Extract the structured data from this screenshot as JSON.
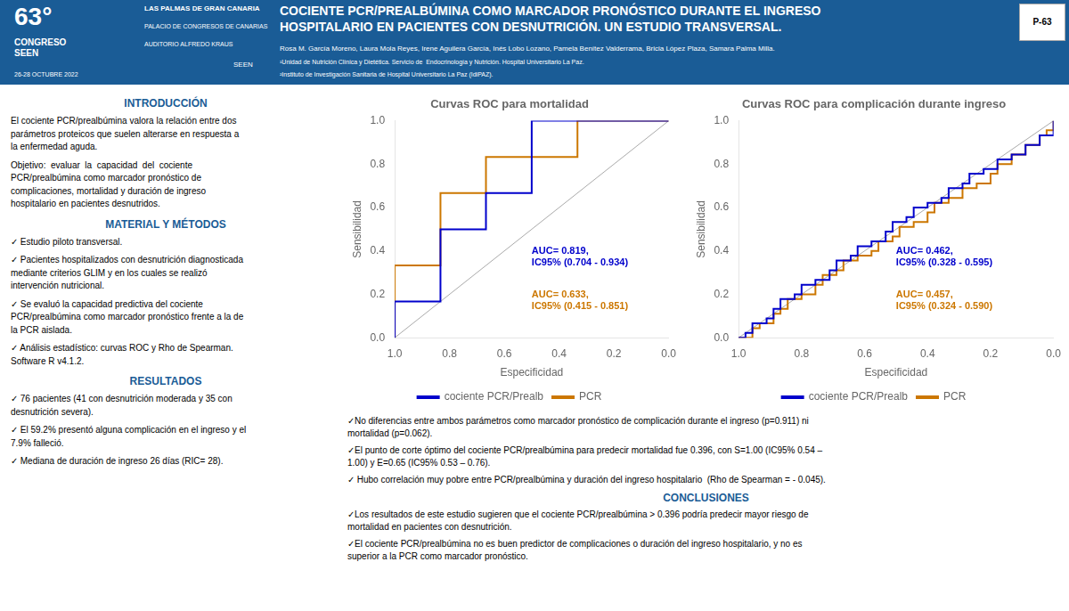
{
  "title": "COCIENTE PCR/PREALBÚMINA COMO MARCADOR PRONÓSTICO DURANTE EL INGRESO\nHOSPITALARIO EN PACIENTES CON DESNUTRICIÓN. UN ESTUDIO TRANSVERSAL.",
  "color": "#1a5c96",
  "annotations": [
    "63°",
    "CONGRESO\nSEEN",
    "26-28 OCTUBRE 2022",
    "LAS PALMAS DE GRAN CANARIA",
    "PALACIO DE CONGRESOS DE CANARIAS",
    "AUDITORIO ALFREDO KRAUS",
    "SEEN",
    "P-63",
    "Rosa M. García Moreno, Laura Mola Reyes, Irene Aguilera García, Inés Lobo Lozano, Pamela Benítez Valderrama, Bricia López Plaza, Samara Palma Milla.",
    "¹Unidad de Nutrición Clínica y Dietética. Servicio de  Endocrinología y Nutrición. Hospital Universitario La Paz.",
    "²Instituto de Investigación Sanitaria de Hospital Universitario La Paz (IdiPAZ).",
    "INTRODUCCIÓN",
    "El cociente PCR/prealbúmina valora la relación entre dos\nparámetros proteicos que suelen alterarse en respuesta a\nla enfermedad aguda.",
    "Objetivo:  evaluar  la  capacidad  del  cociente\nPCR/prealbúmina como marcador pronóstico de\ncomplicaciones, mortalidad y duración de ingreso\nhospitalario en pacientes desnutridos.",
    "MATERIAL Y MÉTODOS",
    "✓ Estudio piloto transversal.",
    "✓ Pacientes hospitalizados con desnutrición diagnosticada\nmediante criterios GLIM y en los cuales se realizó\nintervención nutricional.",
    "✓ Se evaluó la capacidad predictiva del cociente\nPCR/prealbúmina como marcador pronóstico frente a la de\nla PCR aislada.",
    "✓ Análisis estadístico: curvas ROC y Rho de Spearman.\nSoftware R v4.1.2.",
    "RESULTADOS",
    "✓ 76 pacientes (41 con desnutrición moderada y 35 con\ndesnutrición severa).",
    "✓ El 59.2% presentó alguna complicación en el ingreso y el\n7.9% falleció.",
    "✓ Mediana de duración de ingreso 26 días (RIC= 28).",
    "✓No diferencias entre ambos parámetros como marcador pronóstico de complicación durante el ingreso (p=0.911) ni\nmortalidad (p=0.062).",
    "✓El punto de corte óptimo del cociente PCR/prealbúmina para predecir mortalidad fue 0.396, con S=1.00 (IC95% 0.54 –\n1.00) y E=0.65 (IC95% 0.53 – 0.76).",
    "✓ Hubo correlación muy pobre entre PCR/prealbúmina y duración del ingreso hospitalario  (Rho de Spearman = - 0.045).",
    "CONCLUSIONES",
    "✓Los resultados de este estudio sugieren que el cociente PCR/prealbúmina > 0.396 podría predecir mayor riesgo de\nmortalidad en pacientes con desnutrición.",
    "✓El cociente PCR/prealbúmina no es buen predictor de complicaciones o duración del ingreso hospitalario, y no es\nsuperior a la PCR como marcador pronóstico."
  ],
  "chart_data": [
    {
      "type": "line",
      "title": "Curvas ROC para mortalidad",
      "xlabel": "Especificidad",
      "ylabel": "Sensibilidad",
      "xlim": [
        1,
        0
      ],
      "ylim": [
        0,
        1
      ],
      "xticks": [
        {
          "value": 1,
          "label": "1.0"
        },
        0.8,
        0.6,
        0.4,
        0.2,
        {
          "value": 0,
          "label": "0.0"
        }
      ],
      "yticks": [
        {
          "value": 0,
          "label": "0.0"
        },
        0.2,
        0.4,
        0.6,
        0.8,
        {
          "value": 1,
          "label": "1.0"
        }
      ],
      "grid": false,
      "legend": "bottom",
      "series": [
        {
          "name": "cociente PCR/Prealb",
          "color": "#0000cc",
          "line_style": "steps-post",
          "x": [
            1.0,
            1.0,
            0.833,
            0.833,
            0.667,
            0.667,
            0.5,
            0.5,
            0.167,
            0.167,
            0.0
          ],
          "values": [
            0.0,
            0.167,
            0.167,
            0.5,
            0.5,
            0.667,
            0.667,
            1.0,
            1.0,
            1.0,
            1.0
          ]
        },
        {
          "name": "PCR",
          "color": "#cc7700",
          "line_style": "steps-post",
          "x": [
            1.0,
            1.0,
            0.833,
            0.833,
            0.667,
            0.667,
            0.333,
            0.333,
            0.0,
            0.0
          ],
          "values": [
            0.0,
            0.333,
            0.333,
            0.667,
            0.667,
            0.833,
            0.833,
            1.0,
            1.0,
            1.0
          ]
        },
        {
          "color": "#aaaaaa",
          "line_style": "solid",
          "x": [
            1,
            0
          ],
          "values": [
            0,
            1
          ]
        }
      ],
      "annotations": [
        {
          "text": "AUC= 0.819,\nIC95% (0.704 - 0.934)",
          "color": "#0000cc"
        },
        {
          "text": "AUC= 0.633,\nIC95% (0.415 - 0.851)",
          "color": "#cc7700"
        }
      ]
    },
    {
      "type": "line",
      "title": "Curvas ROC para complicación durante ingreso",
      "xlabel": "Especificidad",
      "ylabel": "Sensibilidad",
      "xlim": [
        1,
        0
      ],
      "ylim": [
        0,
        1
      ],
      "xticks": [
        {
          "value": 1,
          "label": "1.0"
        },
        0.8,
        0.6,
        0.4,
        0.2,
        {
          "value": 0,
          "label": "0.0"
        }
      ],
      "yticks": [
        {
          "value": 0,
          "label": "0.0"
        },
        0.2,
        0.4,
        0.6,
        0.8,
        {
          "value": 1,
          "label": "1.0"
        }
      ],
      "grid": false,
      "legend": "bottom",
      "series": [
        {
          "name": "cociente PCR/Prealb",
          "color": "#0000cc",
          "line_style": "steps-post",
          "x": [
            1.0,
            0.978,
            0.956,
            0.911,
            0.889,
            0.867,
            0.822,
            0.8,
            0.756,
            0.711,
            0.689,
            0.644,
            0.622,
            0.578,
            0.533,
            0.511,
            0.467,
            0.444,
            0.4,
            0.356,
            0.333,
            0.289,
            0.267,
            0.222,
            0.178,
            0.133,
            0.089,
            0.044,
            0.0
          ],
          "values": [
            0.0,
            0.022,
            0.067,
            0.089,
            0.133,
            0.178,
            0.2,
            0.244,
            0.267,
            0.311,
            0.356,
            0.378,
            0.422,
            0.444,
            0.489,
            0.533,
            0.556,
            0.6,
            0.622,
            0.644,
            0.689,
            0.711,
            0.756,
            0.778,
            0.822,
            0.844,
            0.889,
            0.933,
            1.0
          ]
        },
        {
          "name": "PCR",
          "color": "#cc7700",
          "line_style": "steps-post",
          "x": [
            1.0,
            0.956,
            0.933,
            0.889,
            0.867,
            0.844,
            0.8,
            0.756,
            0.733,
            0.689,
            0.667,
            0.622,
            0.578,
            0.556,
            0.511,
            0.489,
            0.444,
            0.4,
            0.378,
            0.333,
            0.289,
            0.244,
            0.2,
            0.178,
            0.133,
            0.089,
            0.044,
            0.022,
            0.0
          ],
          "values": [
            0.0,
            0.044,
            0.067,
            0.111,
            0.133,
            0.178,
            0.2,
            0.244,
            0.289,
            0.311,
            0.356,
            0.378,
            0.4,
            0.444,
            0.467,
            0.511,
            0.533,
            0.578,
            0.622,
            0.644,
            0.689,
            0.711,
            0.756,
            0.8,
            0.844,
            0.889,
            0.933,
            0.956,
            1.0
          ]
        },
        {
          "color": "#aaaaaa",
          "line_style": "solid",
          "x": [
            1,
            0
          ],
          "values": [
            0,
            1
          ]
        }
      ],
      "annotations": [
        {
          "text": "AUC= 0.462,\nIC95% (0.328 - 0.595)",
          "color": "#0000cc"
        },
        {
          "text": "AUC= 0.457,\nIC95% (0.324 - 0.590)",
          "color": "#cc7700"
        }
      ]
    }
  ]
}
